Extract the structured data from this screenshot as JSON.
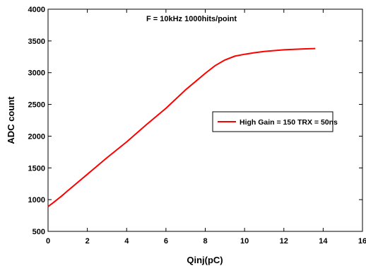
{
  "chart_data": {
    "type": "line",
    "xlabel": "Qinj(pC)",
    "ylabel": "ADC count",
    "annotation": "F = 10kHz 1000hits/point",
    "xlim": [
      0,
      16
    ],
    "ylim": [
      500,
      4000
    ],
    "xticks": [
      0,
      2,
      4,
      6,
      8,
      10,
      12,
      14,
      16
    ],
    "yticks": [
      500,
      1000,
      1500,
      2000,
      2500,
      3000,
      3500,
      4000
    ],
    "grid": false,
    "legend_position": "right",
    "series": [
      {
        "name": "High Gain = 150 TRX = 50ns",
        "color": "#ff0000",
        "x": [
          0,
          0.3,
          0.7,
          1,
          2,
          3,
          4,
          5,
          6,
          7,
          7.5,
          8,
          8.5,
          9,
          9.5,
          10,
          10.5,
          11,
          12,
          13,
          13.6
        ],
        "y": [
          890,
          960,
          1060,
          1140,
          1400,
          1660,
          1910,
          2180,
          2440,
          2730,
          2860,
          2990,
          3110,
          3200,
          3260,
          3290,
          3315,
          3335,
          3360,
          3375,
          3380
        ]
      }
    ]
  }
}
